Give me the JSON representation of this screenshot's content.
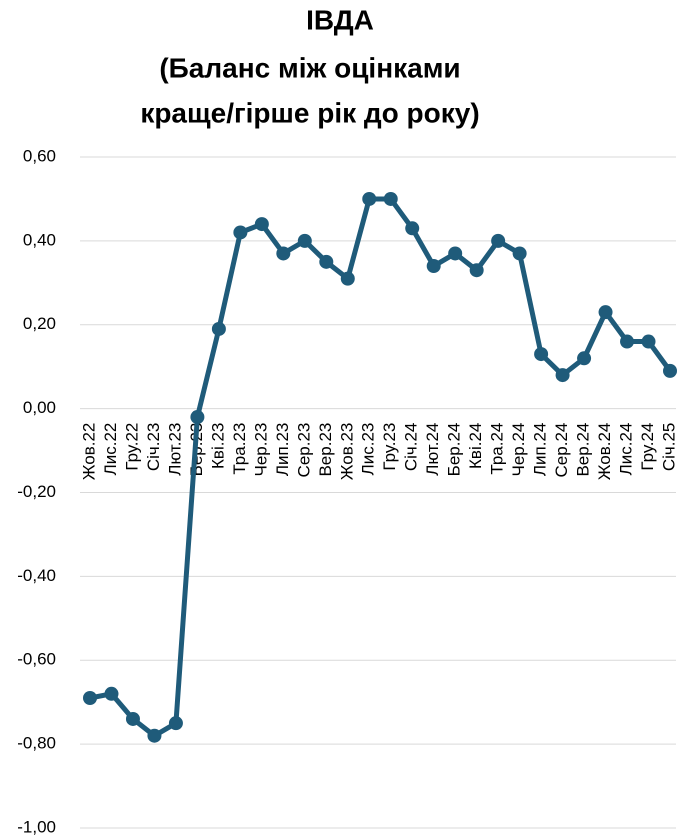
{
  "chart_data": {
    "type": "line",
    "title": [
      "ІВДА",
      "(Баланс між оцінками",
      "краще/гірше рік до року)"
    ],
    "categories": [
      "Жов.22",
      "Лис.22",
      "Гру.22",
      "Січ.23",
      "Лют.23",
      "Бер.23",
      "Кві.23",
      "Тра.23",
      "Чер.23",
      "Лип.23",
      "Сер.23",
      "Вер.23",
      "Жов.23",
      "Лис.23",
      "Гру.23",
      "Січ.24",
      "Лют.24",
      "Бер.24",
      "Кві.24",
      "Тра.24",
      "Чер.24",
      "Лип.24",
      "Сер.24",
      "Вер.24",
      "Жов.24",
      "Лис.24",
      "Гру.24",
      "Січ.25"
    ],
    "values": [
      -0.69,
      -0.68,
      -0.74,
      -0.78,
      -0.75,
      -0.02,
      0.19,
      0.42,
      0.44,
      0.37,
      0.4,
      0.35,
      0.31,
      0.5,
      0.5,
      0.43,
      0.34,
      0.37,
      0.33,
      0.4,
      0.37,
      0.13,
      0.08,
      0.12,
      0.23,
      0.16,
      0.16,
      0.09
    ],
    "color": "#1f5b7a",
    "ylim": [
      -1,
      0.6
    ],
    "yticks": [
      {
        "value": -1,
        "label": "-1,00"
      },
      {
        "value": -0.8,
        "label": "-0,80"
      },
      {
        "value": -0.6,
        "label": "-0,60"
      },
      {
        "value": -0.4,
        "label": "-0,40"
      },
      {
        "value": -0.2,
        "label": "-0,20"
      },
      {
        "value": 0,
        "label": "0,00"
      },
      {
        "value": 0.2,
        "label": "0,20"
      },
      {
        "value": 0.4,
        "label": "0,40"
      },
      {
        "value": 0.6,
        "label": "0,60"
      }
    ],
    "grid": true
  }
}
